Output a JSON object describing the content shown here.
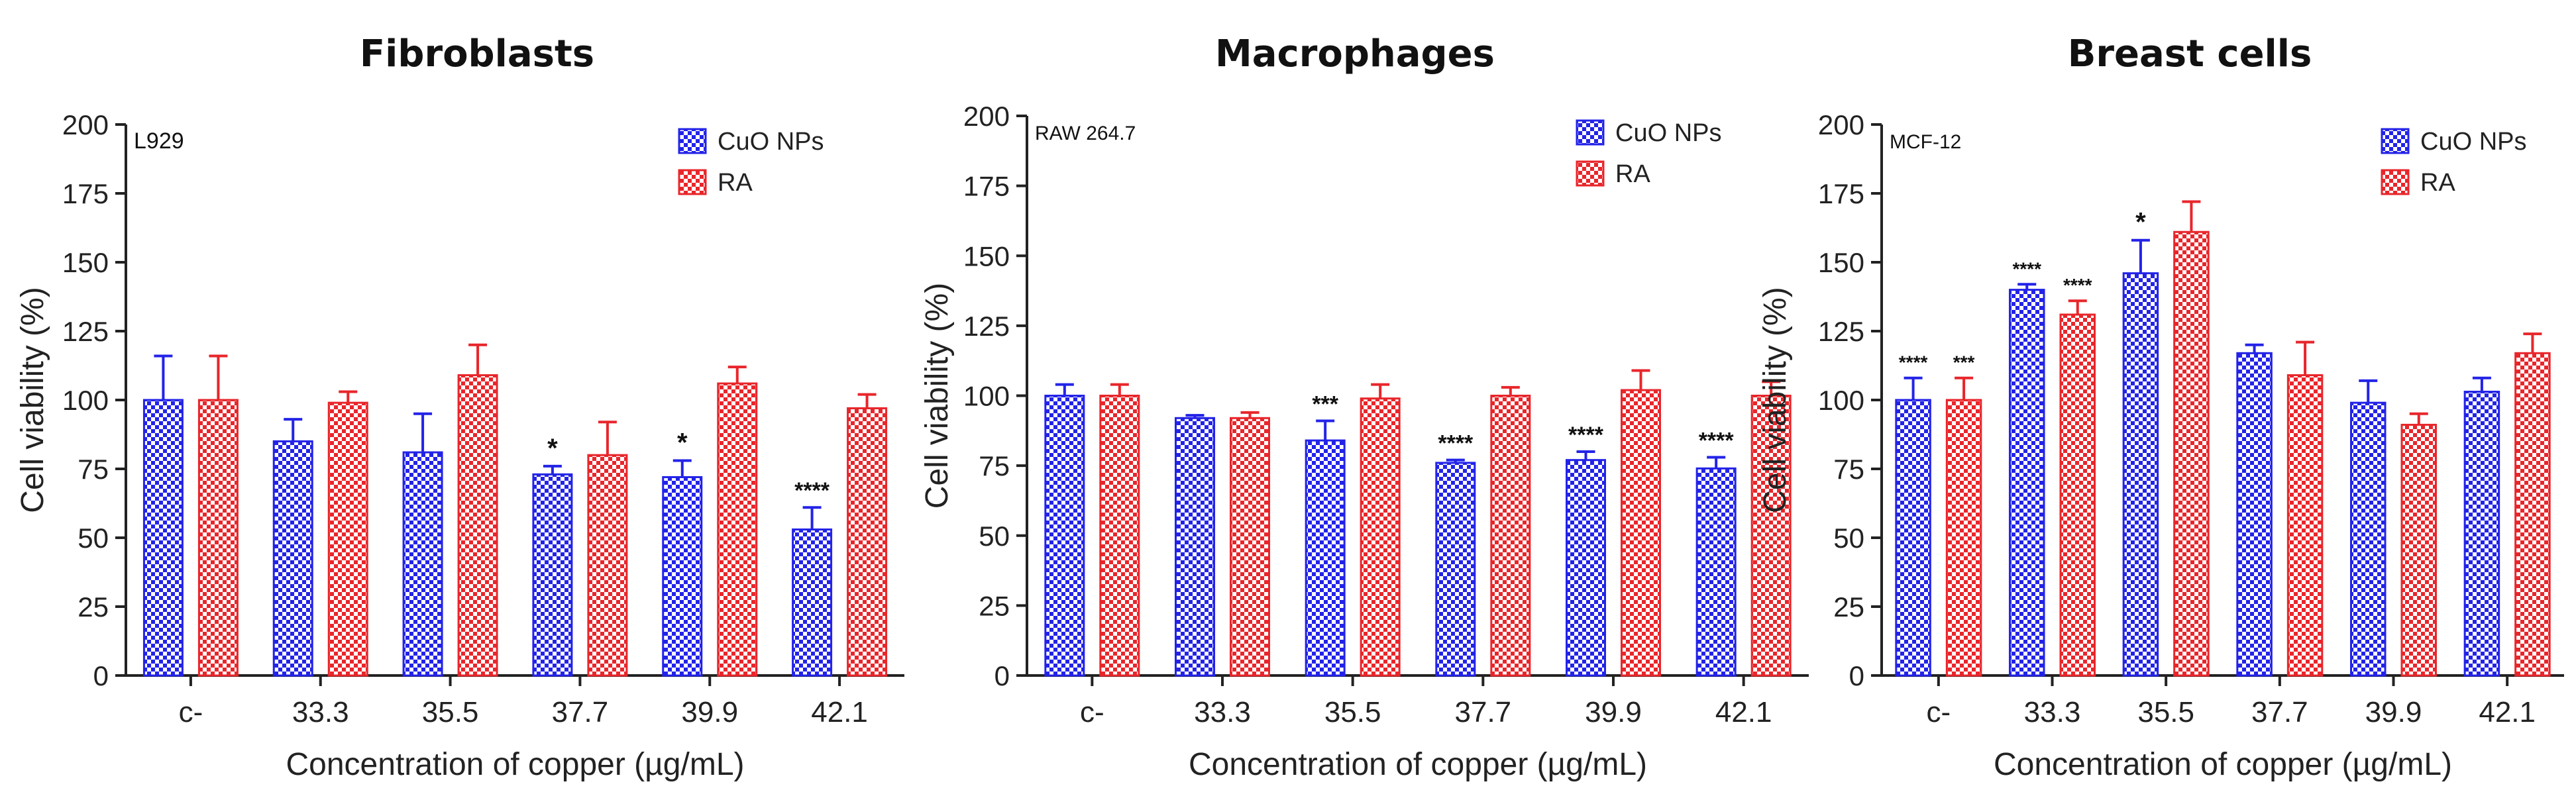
{
  "chart_data": [
    {
      "type": "bar",
      "title": "Fibroblasts",
      "cell_line": "L929",
      "xlabel": "Concentration of copper (µg/mL)",
      "ylabel": "Cell viability (%)",
      "ylim": [
        0,
        200
      ],
      "yticks": [
        "0",
        "25",
        "50",
        "75",
        "100",
        "125",
        "150",
        "175",
        "200"
      ],
      "categories": [
        "c-",
        "33.3",
        "35.5",
        "37.7",
        "39.9",
        "42.1"
      ],
      "legend_position": "top-right",
      "series": [
        {
          "name": "CuO NPs",
          "values": [
            100,
            85,
            81,
            73,
            72,
            53
          ],
          "errors": [
            16,
            8,
            14,
            3,
            6,
            8
          ],
          "sig": [
            "",
            "",
            "",
            "*",
            "*",
            "****"
          ]
        },
        {
          "name": "RA",
          "values": [
            100,
            99,
            109,
            80,
            106,
            97
          ],
          "errors": [
            16,
            4,
            11,
            12,
            6,
            5
          ],
          "sig": [
            "",
            "",
            "",
            "",
            "",
            ""
          ]
        }
      ]
    },
    {
      "type": "bar",
      "title": "Macrophages",
      "cell_line": "RAW 264.7",
      "xlabel": "Concentration of copper (µg/mL)",
      "ylabel": "Cell viability (%)",
      "ylim": [
        0,
        200
      ],
      "yticks": [
        "0",
        "25",
        "50",
        "75",
        "100",
        "125",
        "150",
        "175",
        "200"
      ],
      "categories": [
        "c-",
        "33.3",
        "35.5",
        "37.7",
        "39.9",
        "42.1"
      ],
      "legend_position": "top-right",
      "series": [
        {
          "name": "CuO NPs",
          "values": [
            100,
            92,
            84,
            76,
            77,
            74
          ],
          "errors": [
            4,
            1,
            7,
            1,
            3,
            4
          ],
          "sig": [
            "",
            "",
            "***",
            "****",
            "****",
            "****"
          ]
        },
        {
          "name": "RA",
          "values": [
            100,
            92,
            99,
            100,
            102,
            100
          ],
          "errors": [
            4,
            2,
            5,
            3,
            7,
            5
          ],
          "sig": [
            "",
            "",
            "",
            "",
            "",
            ""
          ]
        }
      ]
    },
    {
      "type": "bar",
      "title": "Breast cells",
      "cell_line": "MCF-12",
      "xlabel": "Concentration of copper (µg/mL)",
      "ylabel": "Cell viability (%)",
      "ylim": [
        0,
        200
      ],
      "yticks": [
        "0",
        "25",
        "50",
        "75",
        "100",
        "125",
        "150",
        "175",
        "200"
      ],
      "categories": [
        "c-",
        "33.3",
        "35.5",
        "37.7",
        "39.9",
        "42.1"
      ],
      "legend_position": "top-right",
      "series": [
        {
          "name": "CuO NPs",
          "values": [
            100,
            140,
            146,
            117,
            99,
            103
          ],
          "errors": [
            8,
            2,
            12,
            3,
            8,
            5
          ],
          "sig": [
            "****",
            "****",
            "*",
            "",
            "",
            ""
          ]
        },
        {
          "name": "RA",
          "values": [
            100,
            131,
            161,
            109,
            91,
            117
          ],
          "errors": [
            8,
            5,
            11,
            12,
            4,
            7
          ],
          "sig": [
            "***",
            "****",
            "",
            "",
            "",
            ""
          ]
        }
      ]
    }
  ],
  "colors": {
    "CuO NPs": "#2323e8",
    "RA": "#e8262b",
    "axis": "#222222"
  }
}
